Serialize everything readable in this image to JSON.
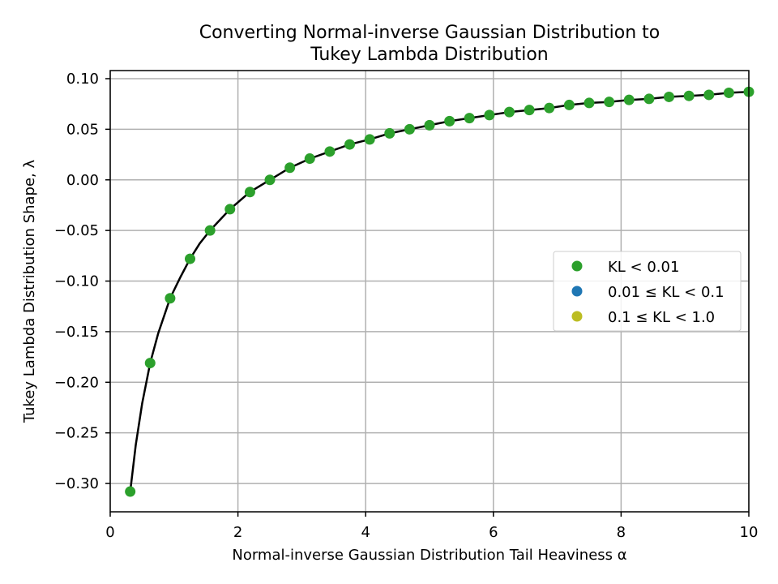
{
  "chart_data": {
    "type": "scatter",
    "title": "Converting Normal-inverse Gaussian Distribution to\nTukey Lambda Distribution",
    "xlabel": "Normal-inverse Gaussian Distribution Tail Heaviness α",
    "ylabel": "Tukey Lambda Distribution Shape, λ",
    "xlim": [
      0,
      10
    ],
    "ylim": [
      -0.328,
      0.108
    ],
    "xticks": [
      0,
      2,
      4,
      6,
      8,
      10
    ],
    "xtick_labels": [
      "0",
      "2",
      "4",
      "6",
      "8",
      "10"
    ],
    "yticks": [
      -0.3,
      -0.25,
      -0.2,
      -0.15,
      -0.1,
      -0.05,
      0.0,
      0.05,
      0.1
    ],
    "ytick_labels": [
      "−0.30",
      "−0.25",
      "−0.20",
      "−0.15",
      "−0.10",
      "−0.05",
      "0.00",
      "0.05",
      "0.10"
    ],
    "grid": true,
    "legend_position": "center-right",
    "series": [
      {
        "name": "KL < 0.01",
        "color": "#2ca02c",
        "x": [
          0.313,
          0.625,
          0.938,
          1.25,
          1.563,
          1.875,
          2.188,
          2.5,
          2.813,
          3.125,
          3.438,
          3.75,
          4.063,
          4.375,
          4.688,
          5.0,
          5.313,
          5.625,
          5.938,
          6.25,
          6.563,
          6.875,
          7.188,
          7.5,
          7.813,
          8.125,
          8.438,
          8.75,
          9.063,
          9.375,
          9.688,
          10.0
        ],
        "y": [
          -0.308,
          -0.181,
          -0.117,
          -0.078,
          -0.05,
          -0.029,
          -0.012,
          0.0,
          0.012,
          0.021,
          0.028,
          0.035,
          0.04,
          0.046,
          0.05,
          0.054,
          0.058,
          0.061,
          0.064,
          0.067,
          0.069,
          0.071,
          0.074,
          0.076,
          0.077,
          0.079,
          0.08,
          0.082,
          0.083,
          0.084,
          0.086,
          0.087
        ]
      },
      {
        "name": "0.01 ≤ KL < 0.1",
        "color": "#1f77b4",
        "x": [],
        "y": []
      },
      {
        "name": "0.1 ≤ KL < 1.0",
        "color": "#bcbd22",
        "x": [],
        "y": []
      }
    ],
    "fit_line": {
      "color": "#000000",
      "x": [
        0.313,
        0.4,
        0.5,
        0.625,
        0.75,
        0.938,
        1.1,
        1.25,
        1.4,
        1.563,
        1.875,
        2.188,
        2.5,
        2.813,
        3.125,
        3.438,
        3.75,
        4.063,
        4.375,
        4.688,
        5.0,
        5.313,
        5.625,
        5.938,
        6.25,
        6.563,
        6.875,
        7.188,
        7.5,
        7.813,
        8.125,
        8.438,
        8.75,
        9.063,
        9.375,
        9.688,
        10.0
      ],
      "y": [
        -0.308,
        -0.262,
        -0.221,
        -0.181,
        -0.152,
        -0.117,
        -0.096,
        -0.078,
        -0.063,
        -0.05,
        -0.029,
        -0.012,
        0.0,
        0.012,
        0.021,
        0.028,
        0.035,
        0.04,
        0.046,
        0.05,
        0.054,
        0.058,
        0.061,
        0.064,
        0.067,
        0.069,
        0.071,
        0.074,
        0.076,
        0.077,
        0.079,
        0.08,
        0.082,
        0.083,
        0.084,
        0.086,
        0.087
      ]
    }
  }
}
